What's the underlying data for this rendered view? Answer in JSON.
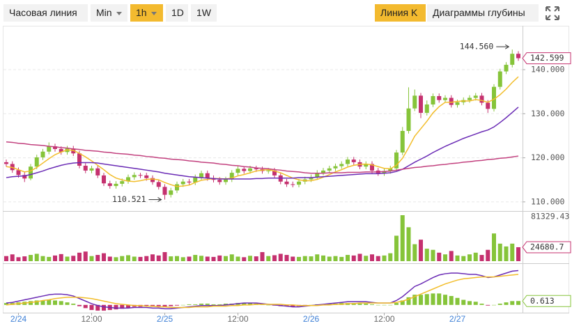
{
  "toolbar": {
    "buttons": [
      "Часовая линия",
      "Min",
      "1h",
      "1D",
      "1W"
    ],
    "active_button": 2,
    "views": [
      "Линия K",
      "Диаграммы глубины"
    ],
    "active_view": 0
  },
  "chart_data": {
    "type": "candlestick",
    "categories": [
      null,
      null,
      "2/24",
      null,
      null,
      null,
      null,
      null,
      null,
      null,
      null,
      null,
      null,
      null,
      "12:00",
      null,
      null,
      null,
      null,
      null,
      null,
      null,
      null,
      null,
      null,
      null,
      "2/25",
      null,
      null,
      null,
      null,
      null,
      null,
      null,
      null,
      null,
      null,
      null,
      "12:00",
      null,
      null,
      null,
      null,
      null,
      null,
      null,
      null,
      null,
      null,
      null,
      "2/26",
      null,
      null,
      null,
      null,
      null,
      null,
      null,
      null,
      null,
      null,
      null,
      "12:00",
      null,
      null,
      null,
      null,
      null,
      null,
      null,
      null,
      null,
      null,
      null,
      "2/27",
      null,
      null,
      null,
      null,
      null,
      null,
      null,
      null,
      null,
      null
    ],
    "open": [
      119.0,
      118.6,
      117.2,
      116.1,
      115.3,
      118.0,
      120.1,
      121.4,
      122.6,
      122.0,
      121.3,
      122.1,
      121.0,
      118.2,
      117.1,
      117.6,
      116.0,
      114.2,
      113.6,
      114.1,
      114.7,
      115.6,
      116.1,
      116.0,
      115.4,
      114.5,
      113.4,
      111.6,
      112.6,
      114.0,
      114.6,
      114.4,
      115.6,
      116.5,
      115.4,
      115.0,
      114.5,
      115.1,
      116.6,
      117.5,
      117.0,
      117.6,
      117.4,
      117.0,
      117.1,
      116.0,
      114.6,
      114.0,
      113.9,
      114.6,
      115.1,
      115.6,
      116.6,
      117.1,
      117.6,
      118.1,
      118.6,
      119.6,
      119.0,
      118.0,
      118.6,
      117.1,
      116.5,
      117.0,
      117.6,
      121.2,
      126.1,
      131.2,
      134.1,
      130.2,
      132.1,
      134.0,
      133.1,
      133.6,
      132.0,
      132.6,
      133.1,
      133.6,
      134.1,
      132.5,
      131.1,
      136.1,
      139.6,
      141.1,
      143.6
    ],
    "high": [
      119.6,
      119.2,
      117.8,
      116.7,
      118.6,
      120.7,
      122.0,
      123.5,
      123.2,
      122.6,
      122.7,
      122.7,
      121.6,
      118.8,
      118.2,
      118.2,
      116.6,
      114.8,
      114.7,
      115.3,
      116.2,
      116.7,
      116.6,
      116.6,
      116.0,
      115.1,
      114.0,
      113.2,
      114.6,
      115.2,
      115.2,
      116.2,
      117.1,
      117.1,
      116.0,
      115.6,
      115.7,
      117.2,
      118.1,
      118.1,
      118.2,
      118.2,
      118.0,
      117.7,
      117.7,
      116.6,
      115.2,
      114.6,
      115.2,
      115.7,
      116.2,
      117.2,
      117.7,
      118.2,
      118.7,
      119.2,
      120.2,
      120.2,
      119.6,
      119.2,
      119.2,
      117.7,
      117.6,
      118.2,
      121.8,
      127.0,
      136.0,
      135.5,
      134.7,
      133.0,
      134.6,
      134.6,
      134.2,
      134.2,
      133.2,
      133.7,
      134.2,
      134.7,
      134.7,
      133.1,
      136.7,
      140.2,
      141.7,
      144.56,
      144.2
    ],
    "low": [
      118.0,
      116.6,
      115.5,
      114.5,
      114.9,
      117.4,
      119.5,
      120.8,
      121.4,
      120.7,
      120.7,
      120.4,
      117.6,
      116.5,
      116.5,
      115.4,
      113.6,
      113.0,
      113.0,
      113.5,
      114.1,
      115.0,
      115.4,
      114.8,
      113.9,
      112.8,
      110.521,
      111.0,
      112.0,
      113.4,
      113.8,
      113.8,
      115.0,
      114.8,
      114.4,
      113.9,
      113.9,
      114.5,
      116.0,
      116.4,
      116.4,
      116.8,
      116.4,
      116.4,
      115.4,
      114.0,
      113.4,
      113.3,
      113.3,
      114.0,
      114.5,
      115.0,
      116.0,
      116.5,
      117.0,
      117.5,
      118.0,
      118.4,
      117.4,
      117.4,
      116.5,
      115.9,
      115.9,
      116.4,
      117.0,
      120.6,
      125.5,
      130.6,
      129.0,
      129.6,
      131.5,
      132.5,
      132.5,
      131.4,
      131.4,
      132.0,
      132.5,
      133.0,
      131.9,
      130.2,
      130.5,
      135.5,
      139.0,
      140.5,
      142.0
    ],
    "close": [
      118.6,
      117.2,
      116.1,
      115.3,
      118.0,
      120.1,
      121.4,
      122.6,
      122.0,
      121.3,
      122.1,
      121.0,
      118.2,
      117.1,
      117.6,
      116.0,
      114.2,
      113.6,
      114.1,
      114.7,
      115.6,
      116.1,
      116.0,
      115.4,
      114.5,
      113.4,
      111.6,
      112.6,
      114.0,
      114.6,
      114.4,
      115.6,
      116.5,
      115.4,
      115.0,
      114.5,
      115.1,
      116.6,
      117.5,
      117.0,
      117.6,
      117.4,
      117.0,
      117.1,
      116.0,
      114.6,
      114.0,
      113.9,
      114.6,
      115.1,
      115.6,
      116.6,
      117.1,
      117.6,
      118.1,
      118.6,
      119.6,
      119.0,
      118.0,
      118.6,
      117.1,
      116.5,
      117.0,
      117.6,
      121.2,
      126.1,
      131.2,
      134.1,
      130.2,
      132.1,
      134.0,
      133.1,
      133.6,
      132.0,
      132.6,
      133.1,
      133.6,
      134.1,
      132.5,
      131.1,
      136.1,
      139.6,
      141.1,
      143.6,
      142.599
    ],
    "up_color": "#86c43a",
    "down_color": "#c5316f",
    "ylim": [
      108.4,
      149.8
    ],
    "yticks": [
      {
        "value": 110,
        "label": "110.000"
      },
      {
        "value": 120,
        "label": "120.000"
      },
      {
        "value": 130,
        "label": "130.000"
      },
      {
        "value": 140,
        "label": "140.000"
      }
    ],
    "grid": true,
    "ma_lines": [
      {
        "color": "#f2bd2a",
        "values": [
          118.0,
          117.8,
          117.3,
          116.8,
          117.0,
          117.8,
          118.8,
          119.8,
          120.7,
          121.3,
          121.8,
          121.7,
          121.0,
          120.2,
          119.3,
          118.3,
          117.3,
          116.2,
          115.4,
          115.0,
          114.7,
          114.6,
          114.8,
          115.1,
          115.2,
          115.0,
          114.4,
          113.9,
          113.5,
          113.6,
          113.8,
          114.4,
          114.9,
          115.1,
          115.3,
          115.3,
          115.2,
          115.4,
          115.9,
          116.2,
          116.6,
          117.0,
          117.2,
          117.3,
          117.0,
          116.6,
          116.0,
          115.4,
          115.0,
          114.8,
          114.8,
          115.1,
          115.6,
          116.2,
          116.8,
          117.3,
          117.9,
          118.3,
          118.5,
          118.6,
          118.4,
          118.0,
          117.6,
          117.5,
          118.3,
          119.9,
          122.3,
          124.9,
          126.6,
          128.3,
          130.2,
          131.6,
          132.6,
          132.6,
          132.8,
          132.9,
          132.9,
          133.2,
          133.0,
          132.6,
          133.3,
          134.3,
          135.6,
          137.1,
          138.4
        ]
      },
      {
        "color": "#6a2bb5",
        "values": [
          115.5,
          115.7,
          115.8,
          115.9,
          116.2,
          116.6,
          117.0,
          117.5,
          117.9,
          118.3,
          118.6,
          118.8,
          118.9,
          118.9,
          118.9,
          118.8,
          118.6,
          118.4,
          118.2,
          118.0,
          117.8,
          117.6,
          117.4,
          117.2,
          117.0,
          116.8,
          116.5,
          116.3,
          116.1,
          115.9,
          115.7,
          115.6,
          115.5,
          115.4,
          115.3,
          115.2,
          115.2,
          115.2,
          115.2,
          115.2,
          115.2,
          115.3,
          115.3,
          115.4,
          115.4,
          115.4,
          115.4,
          115.4,
          115.5,
          115.5,
          115.5,
          115.6,
          115.7,
          115.8,
          115.9,
          116.0,
          116.1,
          116.2,
          116.3,
          116.4,
          116.4,
          116.4,
          116.5,
          116.6,
          116.9,
          117.4,
          118.2,
          119.0,
          119.7,
          120.4,
          121.2,
          121.9,
          122.6,
          123.2,
          123.8,
          124.4,
          124.9,
          125.4,
          125.9,
          126.3,
          127.0,
          128.0,
          129.1,
          130.3,
          131.5
        ]
      },
      {
        "color": "#c2407e",
        "values": [
          123.6,
          123.5,
          123.3,
          123.2,
          123.0,
          122.9,
          122.8,
          122.6,
          122.5,
          122.3,
          122.2,
          122.0,
          121.9,
          121.7,
          121.6,
          121.5,
          121.3,
          121.2,
          121.0,
          120.9,
          120.8,
          120.6,
          120.5,
          120.3,
          120.2,
          120.0,
          119.9,
          119.7,
          119.6,
          119.5,
          119.3,
          119.2,
          119.0,
          118.9,
          118.8,
          118.6,
          118.5,
          118.3,
          118.2,
          118.0,
          117.9,
          117.7,
          117.6,
          117.5,
          117.3,
          117.2,
          117.0,
          116.9,
          116.8,
          116.6,
          116.5,
          116.5,
          116.5,
          116.6,
          116.6,
          116.6,
          116.7,
          116.7,
          116.7,
          116.8,
          116.8,
          116.8,
          116.9,
          117.0,
          117.2,
          117.4,
          117.6,
          117.8,
          117.9,
          118.1,
          118.2,
          118.4,
          118.5,
          118.7,
          118.8,
          119.0,
          119.1,
          119.3,
          119.4,
          119.6,
          119.7,
          119.9,
          120.0,
          120.2,
          120.4
        ]
      }
    ],
    "annotations": [
      {
        "index": 83,
        "value": 144.56,
        "label": "144.560"
      },
      {
        "index": 26,
        "value": 110.521
      }
    ],
    "volume": {
      "ylim": [
        0,
        81329.43
      ],
      "yticks": [
        81329.43
      ],
      "values": [
        9000,
        12000,
        7000,
        8500,
        11000,
        13000,
        9000,
        7500,
        10000,
        12500,
        8000,
        9500,
        15000,
        17000,
        9000,
        11000,
        14000,
        8000,
        7000,
        9000,
        10500,
        8000,
        7500,
        9000,
        12000,
        10000,
        16000,
        8500,
        9000,
        7000,
        8000,
        11000,
        9500,
        8000,
        7500,
        10000,
        9000,
        12000,
        8000,
        7000,
        9500,
        8500,
        16000,
        9000,
        10500,
        13000,
        11000,
        8000,
        7500,
        9000,
        8500,
        12000,
        10000,
        8000,
        9000,
        7500,
        11000,
        10000,
        13000,
        9500,
        12000,
        9000,
        10000,
        14000,
        45000,
        81329.43,
        60000,
        30000,
        38000,
        22000,
        20000,
        15000,
        12000,
        18000,
        10000,
        9000,
        12000,
        15000,
        11000,
        20000,
        49000,
        31000,
        26000,
        31000,
        24680.7
      ]
    },
    "macd": {
      "ylim": [
        -1,
        6
      ],
      "histogram": [
        0.3,
        0.3,
        0.4,
        0.5,
        0.6,
        0.7,
        0.7,
        0.8,
        0.7,
        0.6,
        0.4,
        0.2,
        -0.2,
        -0.5,
        -0.8,
        -0.9,
        -0.9,
        -0.8,
        -0.7,
        -0.6,
        -0.5,
        -0.3,
        -0.3,
        -0.2,
        -0.3,
        -0.2,
        -0.3,
        -0.2,
        -0.1,
        0.0,
        0.1,
        0.1,
        0.2,
        0.2,
        0.1,
        0.1,
        0.2,
        0.2,
        0.3,
        0.3,
        0.3,
        0.2,
        0.1,
        0.0,
        -0.1,
        -0.2,
        -0.2,
        -0.3,
        -0.2,
        -0.1,
        0.0,
        0.1,
        0.1,
        0.2,
        0.2,
        0.3,
        0.3,
        0.3,
        0.2,
        0.2,
        0.1,
        0.0,
        0.0,
        0.0,
        0.3,
        0.7,
        1.2,
        1.6,
        1.6,
        1.7,
        1.8,
        1.8,
        1.6,
        1.4,
        1.1,
        0.8,
        0.6,
        0.5,
        0.2,
        -0.1,
        0.0,
        0.2,
        0.4,
        0.6,
        0.613
      ],
      "lines": [
        {
          "color": "#6a2bb5",
          "values": [
            0.3,
            0.4,
            0.6,
            0.8,
            1.0,
            1.2,
            1.4,
            1.6,
            1.7,
            1.7,
            1.6,
            1.4,
            1.0,
            0.6,
            0.2,
            -0.1,
            -0.3,
            -0.4,
            -0.5,
            -0.5,
            -0.5,
            -0.4,
            -0.4,
            -0.4,
            -0.5,
            -0.5,
            -0.6,
            -0.6,
            -0.5,
            -0.4,
            -0.3,
            -0.2,
            -0.1,
            -0.1,
            -0.1,
            -0.1,
            0.0,
            0.1,
            0.2,
            0.3,
            0.3,
            0.3,
            0.2,
            0.1,
            0.0,
            -0.1,
            -0.2,
            -0.3,
            -0.3,
            -0.2,
            -0.1,
            0.0,
            0.1,
            0.2,
            0.3,
            0.4,
            0.5,
            0.5,
            0.5,
            0.5,
            0.4,
            0.3,
            0.3,
            0.3,
            0.7,
            1.3,
            2.1,
            2.9,
            3.3,
            3.8,
            4.3,
            4.7,
            4.9,
            5.0,
            5.0,
            4.9,
            4.8,
            4.8,
            4.6,
            4.3,
            4.4,
            4.7,
            5.0,
            5.3,
            5.4
          ]
        },
        {
          "color": "#f2bd2a",
          "values": [
            0.0,
            0.1,
            0.2,
            0.3,
            0.4,
            0.5,
            0.7,
            0.8,
            1.0,
            1.1,
            1.2,
            1.2,
            1.2,
            1.1,
            1.0,
            0.8,
            0.6,
            0.4,
            0.2,
            0.1,
            0.0,
            -0.1,
            -0.1,
            -0.2,
            -0.2,
            -0.3,
            -0.3,
            -0.4,
            -0.4,
            -0.4,
            -0.4,
            -0.3,
            -0.3,
            -0.3,
            -0.2,
            -0.2,
            -0.2,
            -0.1,
            -0.1,
            0.0,
            0.0,
            0.1,
            0.1,
            0.1,
            0.1,
            0.1,
            0.0,
            0.0,
            -0.1,
            -0.1,
            -0.1,
            -0.1,
            0.0,
            0.0,
            0.1,
            0.1,
            0.2,
            0.2,
            0.3,
            0.3,
            0.3,
            0.3,
            0.3,
            0.3,
            0.4,
            0.6,
            0.9,
            1.3,
            1.7,
            2.1,
            2.5,
            2.9,
            3.3,
            3.6,
            3.9,
            4.1,
            4.2,
            4.3,
            4.4,
            4.4,
            4.4,
            4.5,
            4.6,
            4.7,
            4.8
          ]
        }
      ]
    }
  }
}
